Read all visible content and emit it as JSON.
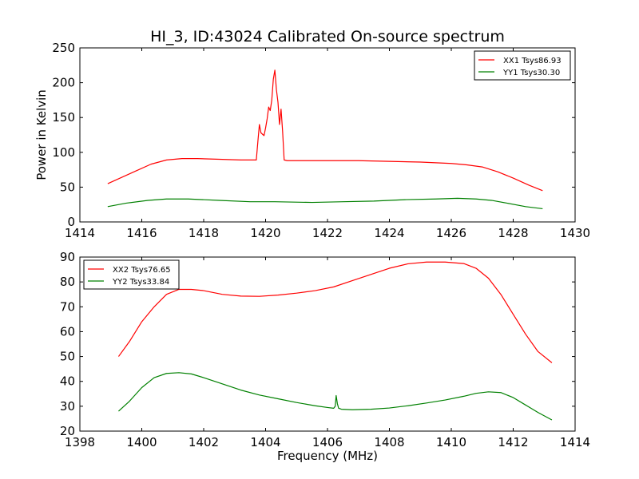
{
  "figure": {
    "title": "HI_3, ID:43024 Calibrated On-source spectrum",
    "xlabel": "Frequency (MHz)",
    "ylabel_top": "Power in Kelvin"
  },
  "colors": {
    "red": "#ff0000",
    "green": "#008000",
    "axis": "#000000",
    "background": "#ffffff"
  },
  "chart_data": [
    {
      "type": "line",
      "title": "HI_3, ID:43024 Calibrated On-source spectrum",
      "xlabel": "",
      "ylabel": "Power in Kelvin",
      "xlim": [
        1414,
        1430
      ],
      "ylim": [
        0,
        250
      ],
      "xticks": [
        "1414",
        "1416",
        "1418",
        "1420",
        "1422",
        "1424",
        "1426",
        "1428",
        "1430"
      ],
      "yticks": [
        "0",
        "50",
        "100",
        "150",
        "200",
        "250"
      ],
      "legend_position": "top-right",
      "series": [
        {
          "name": "XX1 Tsys86.93",
          "color": "#ff0000",
          "x": [
            1414.9,
            1415.3,
            1415.8,
            1416.3,
            1416.8,
            1417.3,
            1417.8,
            1418.5,
            1419.2,
            1419.7,
            1419.75,
            1419.8,
            1419.85,
            1419.9,
            1419.95,
            1420.0,
            1420.05,
            1420.1,
            1420.15,
            1420.2,
            1420.25,
            1420.3,
            1420.35,
            1420.4,
            1420.45,
            1420.5,
            1420.55,
            1420.6,
            1420.7,
            1421.0,
            1422.0,
            1423.0,
            1424.0,
            1425.0,
            1425.5,
            1426.0,
            1426.5,
            1427.0,
            1427.5,
            1428.0,
            1428.5,
            1428.95
          ],
          "y": [
            55,
            63,
            73,
            83,
            89,
            91,
            91,
            90,
            89,
            89,
            115,
            140,
            128,
            126,
            124,
            135,
            148,
            165,
            160,
            175,
            205,
            218,
            190,
            172,
            140,
            162,
            130,
            89,
            88,
            88,
            88,
            88,
            87,
            86,
            85,
            84,
            82,
            79,
            72,
            63,
            53,
            45
          ]
        },
        {
          "name": "YY1 Tsys30.30",
          "color": "#008000",
          "x": [
            1414.9,
            1415.5,
            1416.2,
            1416.8,
            1417.5,
            1418.5,
            1419.5,
            1420.3,
            1421.5,
            1422.5,
            1423.5,
            1424.5,
            1425.5,
            1426.2,
            1426.8,
            1427.3,
            1427.8,
            1428.4,
            1428.95
          ],
          "y": [
            22,
            27,
            31,
            33,
            33,
            31,
            29,
            29,
            28,
            29,
            30,
            32,
            33,
            34,
            33,
            31,
            27,
            22,
            19
          ]
        }
      ]
    },
    {
      "type": "line",
      "title": "",
      "xlabel": "Frequency (MHz)",
      "ylabel": "",
      "xlim": [
        1398,
        1414
      ],
      "ylim": [
        20,
        90
      ],
      "xticks": [
        "1398",
        "1400",
        "1402",
        "1404",
        "1406",
        "1408",
        "1410",
        "1412",
        "1414"
      ],
      "yticks": [
        "20",
        "30",
        "40",
        "50",
        "60",
        "70",
        "80",
        "90"
      ],
      "legend_position": "top-left",
      "series": [
        {
          "name": "XX2 Tsys76.65",
          "color": "#ff0000",
          "x": [
            1399.25,
            1399.6,
            1400.0,
            1400.4,
            1400.8,
            1401.2,
            1401.6,
            1402.0,
            1402.6,
            1403.2,
            1403.8,
            1404.4,
            1405.0,
            1405.6,
            1406.2,
            1406.8,
            1407.4,
            1408.0,
            1408.6,
            1409.2,
            1409.8,
            1410.4,
            1410.8,
            1411.2,
            1411.6,
            1412.0,
            1412.4,
            1412.8,
            1413.25
          ],
          "y": [
            50,
            56,
            64,
            70,
            75,
            77,
            77,
            76.5,
            75,
            74.3,
            74.2,
            74.7,
            75.5,
            76.5,
            78,
            80.5,
            83,
            85.5,
            87.3,
            88,
            88,
            87.4,
            85.5,
            81.5,
            75,
            67,
            59,
            52,
            47.5
          ]
        },
        {
          "name": "YY2 Tsys33.84",
          "color": "#008000",
          "x": [
            1399.25,
            1399.6,
            1400.0,
            1400.4,
            1400.8,
            1401.2,
            1401.6,
            1402.0,
            1402.6,
            1403.2,
            1403.8,
            1404.4,
            1405.0,
            1405.6,
            1406.0,
            1406.2,
            1406.25,
            1406.28,
            1406.32,
            1406.36,
            1406.45,
            1406.8,
            1407.4,
            1408.0,
            1408.6,
            1409.2,
            1409.8,
            1410.4,
            1410.8,
            1411.2,
            1411.6,
            1412.0,
            1412.4,
            1412.8,
            1413.25
          ],
          "y": [
            28,
            32,
            37.5,
            41.5,
            43.2,
            43.5,
            43,
            41.5,
            39,
            36.5,
            34.5,
            33,
            31.5,
            30.2,
            29.5,
            29.2,
            30,
            34.3,
            31,
            29.2,
            28.8,
            28.6,
            28.8,
            29.3,
            30.2,
            31.3,
            32.5,
            34,
            35.2,
            35.8,
            35.5,
            33.5,
            30.5,
            27.5,
            24.5
          ]
        }
      ]
    }
  ]
}
